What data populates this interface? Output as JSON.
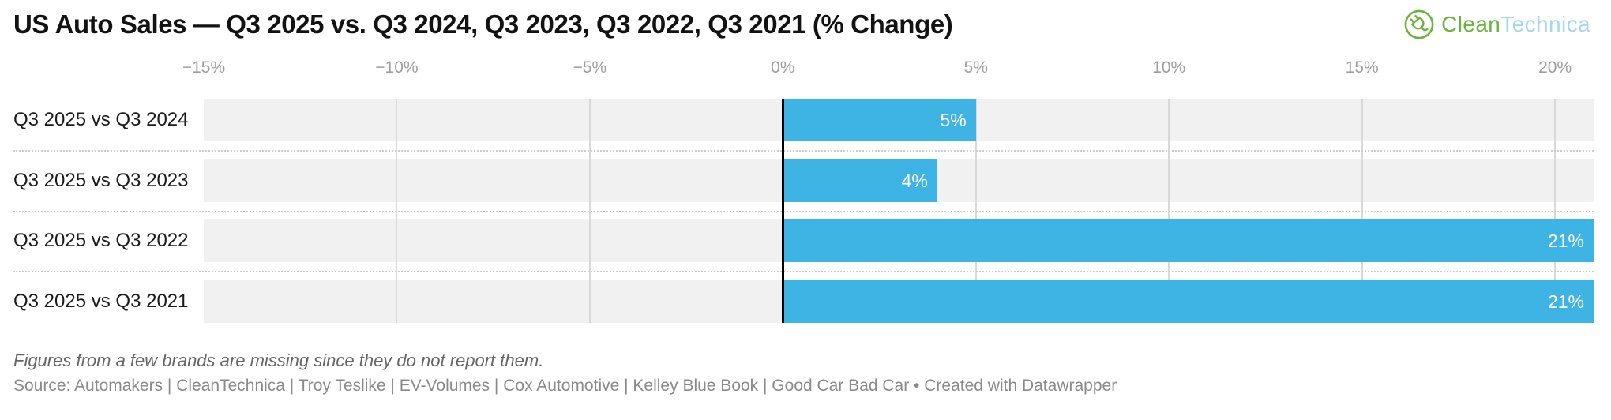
{
  "header": {
    "title": "US Auto Sales — Q3 2025 vs. Q3 2024, Q3 2023, Q3 2022, Q3 2021 (% Change)",
    "logo": {
      "icon": "plug-in-circle-icon",
      "brand_part_green": "Clean",
      "brand_part_blue": "Technica",
      "green_hex": "#6CB33E",
      "blue_hex": "#A6D7F2"
    }
  },
  "chart_data": {
    "type": "bar",
    "orientation": "horizontal",
    "title": "US Auto Sales — Q3 2025 vs. Q3 2024, Q3 2023, Q3 2022, Q3 2021 (% Change)",
    "categories": [
      "Q3 2025 vs Q3 2024",
      "Q3 2025 vs Q3 2023",
      "Q3 2025 vs Q3 2022",
      "Q3 2025 vs Q3 2021"
    ],
    "values": [
      5,
      4,
      21,
      21
    ],
    "value_labels": [
      "5%",
      "4%",
      "21%",
      "21%"
    ],
    "xlabel": "",
    "ylabel": "",
    "xlim": [
      -15,
      21
    ],
    "ticks": [
      {
        "value": -15,
        "label": "−15%"
      },
      {
        "value": -10,
        "label": "−10%"
      },
      {
        "value": -5,
        "label": "−5%"
      },
      {
        "value": 0,
        "label": "0%"
      },
      {
        "value": 5,
        "label": "5%"
      },
      {
        "value": 10,
        "label": "10%"
      },
      {
        "value": 15,
        "label": "15%"
      },
      {
        "value": 20,
        "label": "20%"
      }
    ],
    "gridlines": [
      -10,
      -5,
      5,
      10,
      15,
      20
    ],
    "zero_line": 0,
    "bar_color": "#3EB4E4",
    "track_color": "#F1F1F1",
    "grid_on": true,
    "legend": "none"
  },
  "footer": {
    "note": "Figures from a few brands are missing since they do not report them.",
    "source": "Source: Automakers | CleanTechnica | Troy Teslike | EV-Volumes | Cox Automotive | Kelley Blue Book | Good Car Bad Car • Created with Datawrapper"
  }
}
